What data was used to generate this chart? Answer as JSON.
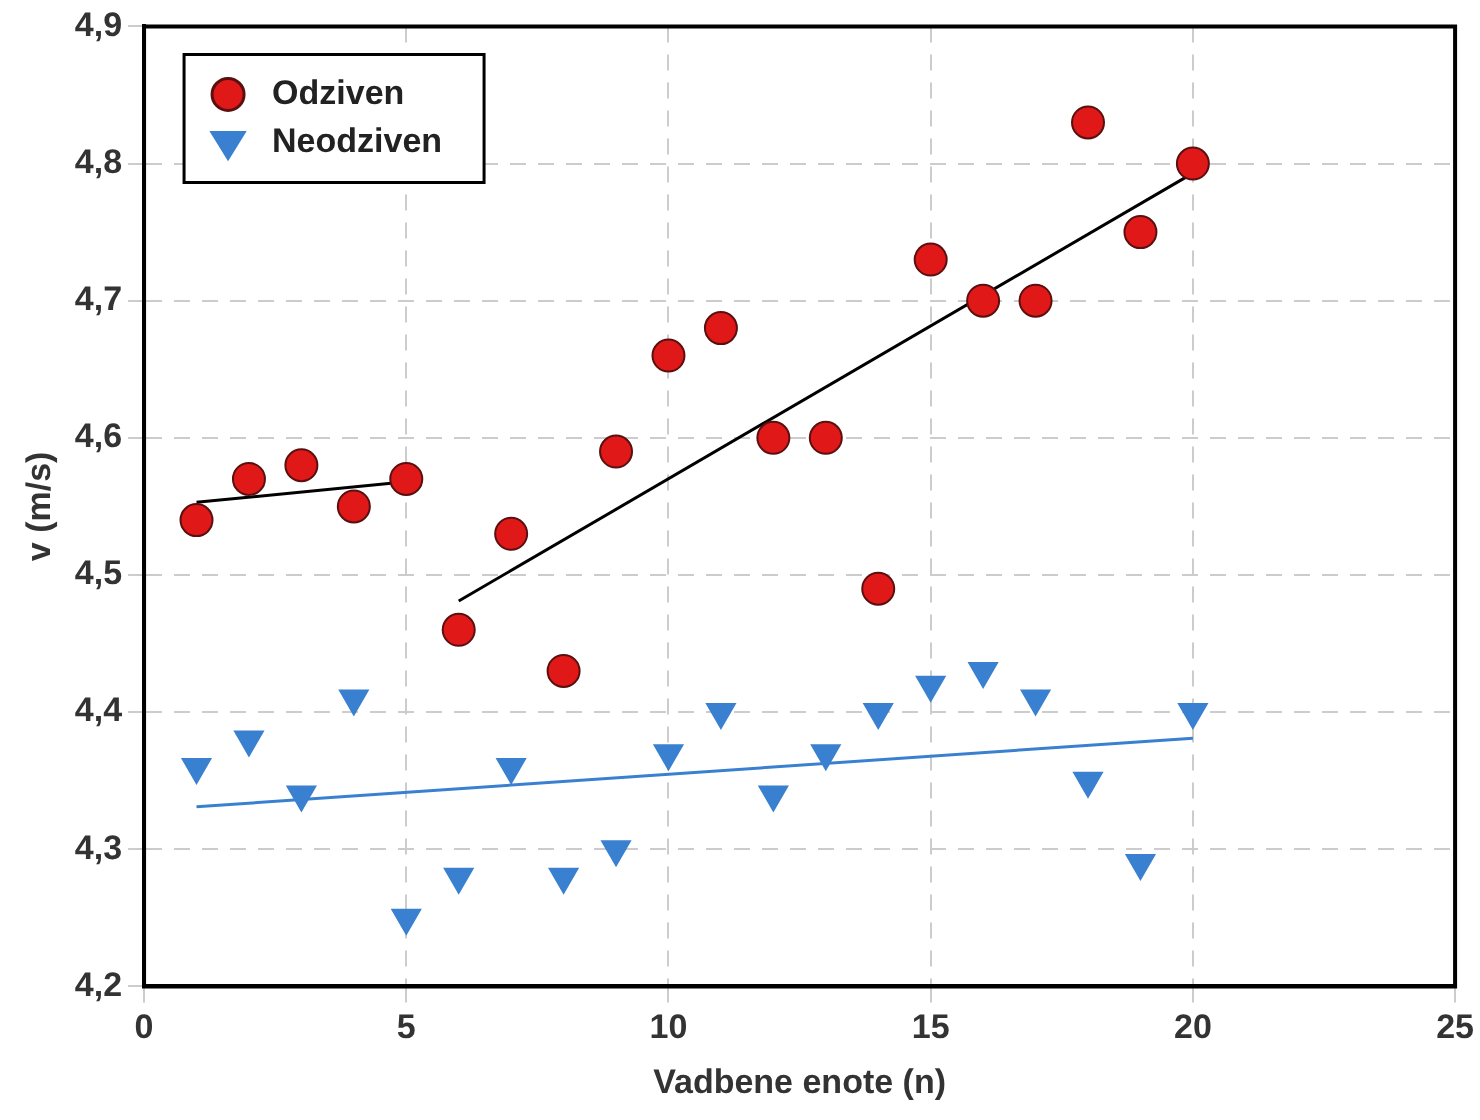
{
  "chart_data": {
    "type": "scatter",
    "xlabel": "Vadbene enote (n)",
    "ylabel": "v (m/s)",
    "xlim": [
      0,
      25
    ],
    "xticks": [
      0,
      5,
      10,
      15,
      20,
      25
    ],
    "ylim": [
      4.2,
      4.9
    ],
    "yticks": [
      {
        "value": 4.2,
        "label": "4,2"
      },
      {
        "value": 4.3,
        "label": "4,3"
      },
      {
        "value": 4.4,
        "label": "4,4"
      },
      {
        "value": 4.5,
        "label": "4,5"
      },
      {
        "value": 4.6,
        "label": "4,6"
      },
      {
        "value": 4.7,
        "label": "4,7"
      },
      {
        "value": 4.8,
        "label": "4,8"
      },
      {
        "value": 4.9,
        "label": "4,9"
      }
    ],
    "grid": true,
    "legend": "top left",
    "x": [
      1,
      2,
      3,
      4,
      5,
      6,
      7,
      8,
      9,
      10,
      11,
      12,
      13,
      14,
      15,
      16,
      17,
      18,
      19,
      20
    ],
    "series": [
      {
        "name": "Odziven",
        "color": "#e01818",
        "marker": "circle",
        "values": [
          4.54,
          4.57,
          4.58,
          4.55,
          4.57,
          4.46,
          4.53,
          4.43,
          4.59,
          4.66,
          4.68,
          4.6,
          4.6,
          4.49,
          4.73,
          4.7,
          4.7,
          4.83,
          4.75,
          4.8
        ]
      },
      {
        "name": "Neodziven",
        "color": "#3a80d0",
        "marker": "triangle",
        "values": [
          4.36,
          4.38,
          4.34,
          4.41,
          4.25,
          4.28,
          4.36,
          4.28,
          4.3,
          4.37,
          4.4,
          4.34,
          4.37,
          4.4,
          4.42,
          4.43,
          4.41,
          4.35,
          4.29,
          4.4
        ]
      },
      {
        "type": "line",
        "color": "#000000",
        "x": [
          1,
          5
        ],
        "values": [
          4.553,
          4.568
        ]
      },
      {
        "type": "line",
        "color": "#000000",
        "x": [
          6,
          20
        ],
        "values": [
          4.481,
          4.793
        ]
      },
      {
        "type": "line",
        "color": "#3a80d0",
        "x": [
          1,
          20
        ],
        "values": [
          4.331,
          4.381
        ]
      }
    ]
  }
}
